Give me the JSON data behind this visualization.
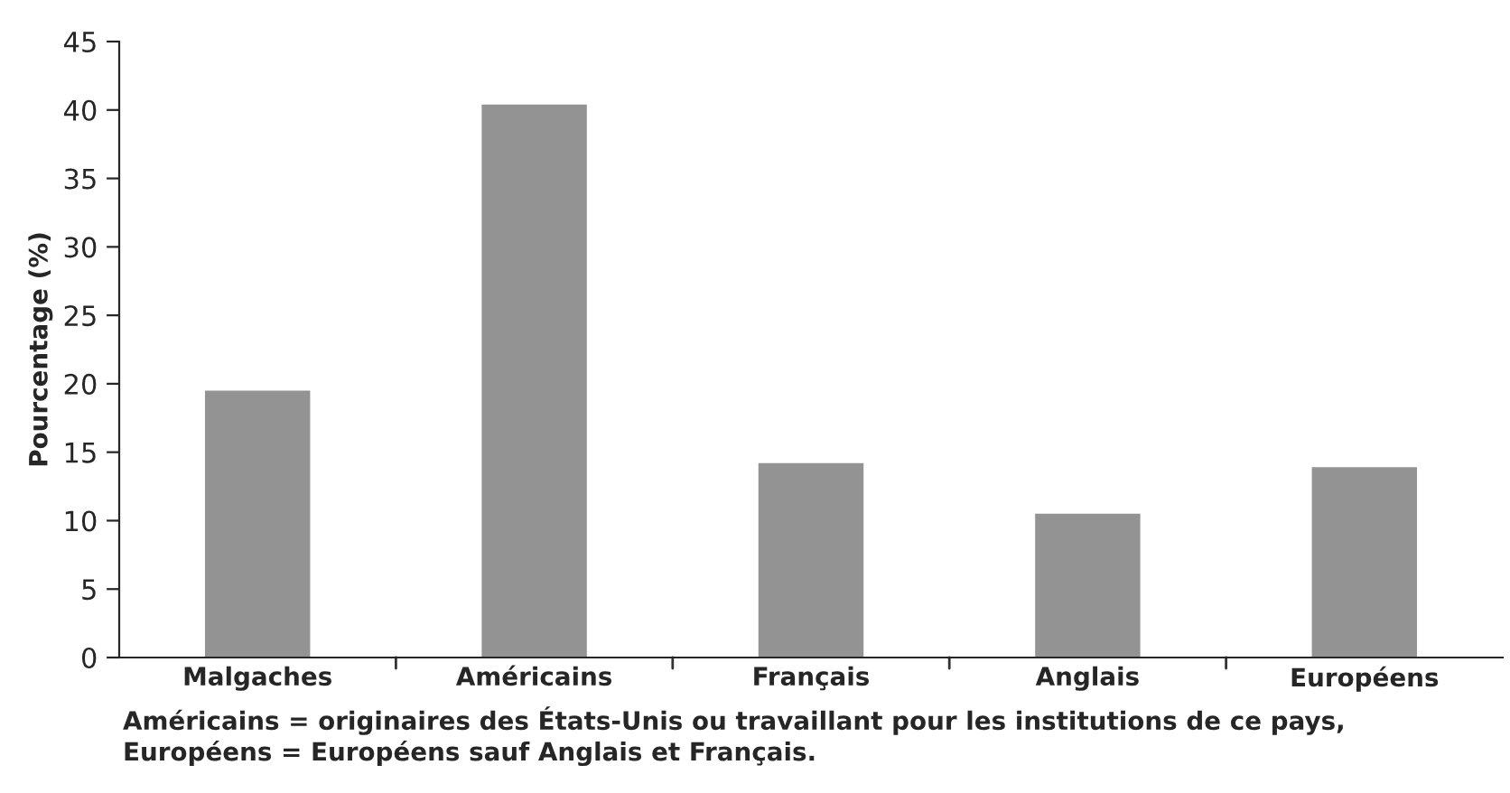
{
  "chart_data": {
    "type": "bar",
    "ylabel": "Pourcentage (%)",
    "categories": [
      "Malgaches",
      "Américains",
      "Français",
      "Anglais",
      "Européens"
    ],
    "values": [
      19.5,
      40.4,
      14.2,
      10.5,
      13.9
    ],
    "color": "#939393",
    "ylim": [
      0,
      45
    ],
    "yticks": [
      0,
      5,
      10,
      15,
      20,
      25,
      30,
      35,
      40,
      45
    ],
    "grid": false,
    "annotations": [
      "Américains = originaires des États-Unis ou travaillant pour les institutions de ce pays,",
      "Européens = Européens sauf Anglais et Français."
    ]
  }
}
